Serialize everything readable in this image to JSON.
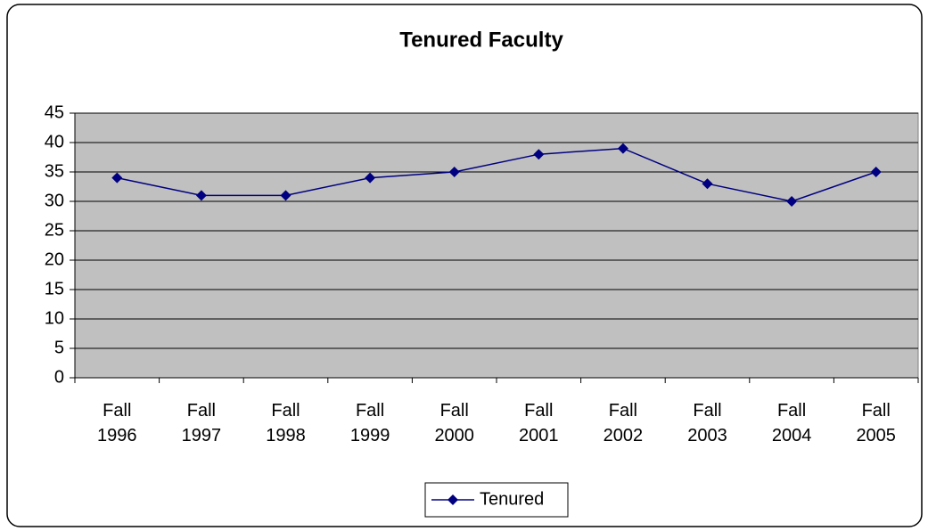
{
  "chart_data": {
    "type": "line",
    "title": "Tenured Faculty",
    "categories": [
      "Fall 1996",
      "Fall 1997",
      "Fall 1998",
      "Fall 1999",
      "Fall 2000",
      "Fall 2001",
      "Fall 2002",
      "Fall 2003",
      "Fall 2004",
      "Fall 2005"
    ],
    "series": [
      {
        "name": "Tenured",
        "color": "#000080",
        "values": [
          34,
          31,
          31,
          34,
          35,
          38,
          39,
          33,
          30,
          35
        ]
      }
    ],
    "ylim": [
      0,
      45
    ],
    "yticks": [
      0,
      5,
      10,
      15,
      20,
      25,
      30,
      35,
      40,
      45
    ],
    "grid": true,
    "legend": "bottom"
  }
}
